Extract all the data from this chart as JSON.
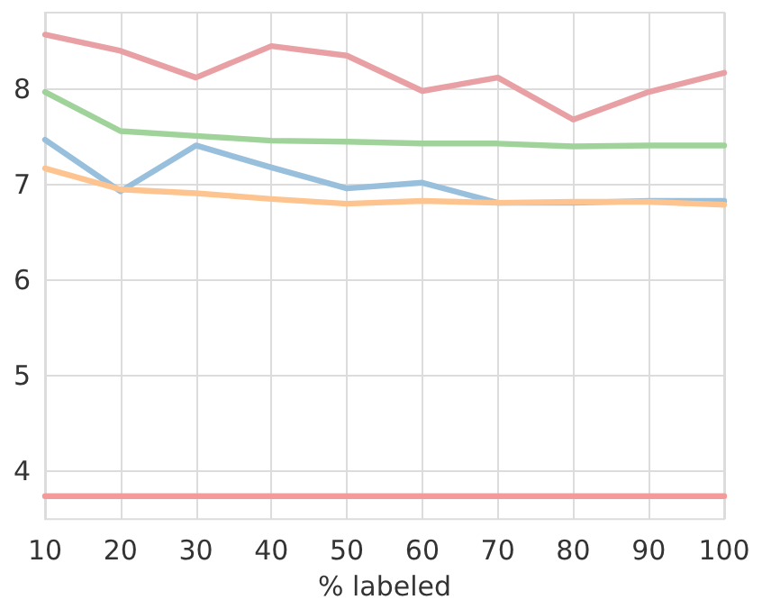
{
  "chart_data": {
    "type": "line",
    "xlabel": "% labeled",
    "x": [
      10,
      20,
      30,
      40,
      50,
      60,
      70,
      80,
      90,
      100
    ],
    "series": [
      {
        "color": "#e8a0a4",
        "values": [
          8.57,
          8.4,
          8.12,
          8.45,
          8.35,
          7.98,
          8.12,
          7.68,
          7.97,
          8.17
        ]
      },
      {
        "color": "#9fd39a",
        "values": [
          7.97,
          7.56,
          7.51,
          7.46,
          7.45,
          7.43,
          7.43,
          7.4,
          7.41,
          7.41
        ]
      },
      {
        "color": "#98bfdc",
        "values": [
          7.47,
          6.93,
          7.41,
          7.18,
          6.96,
          7.02,
          6.81,
          6.81,
          6.83,
          6.83
        ]
      },
      {
        "color": "#fdc48f",
        "values": [
          7.17,
          6.95,
          6.91,
          6.85,
          6.8,
          6.83,
          6.81,
          6.82,
          6.82,
          6.79
        ]
      },
      {
        "color": "#f59a9a",
        "values": [
          3.74,
          3.74,
          3.74,
          3.74,
          3.74,
          3.74,
          3.74,
          3.74,
          3.74,
          3.74
        ]
      }
    ],
    "xlim": [
      10,
      100
    ],
    "xticks": [
      10,
      20,
      30,
      40,
      50,
      60,
      70,
      80,
      90,
      100
    ],
    "ylim": [
      3.5,
      8.8
    ],
    "yticks": [
      4,
      5,
      6,
      7,
      8
    ],
    "grid": true,
    "marker": "none",
    "line_style": "solid"
  }
}
